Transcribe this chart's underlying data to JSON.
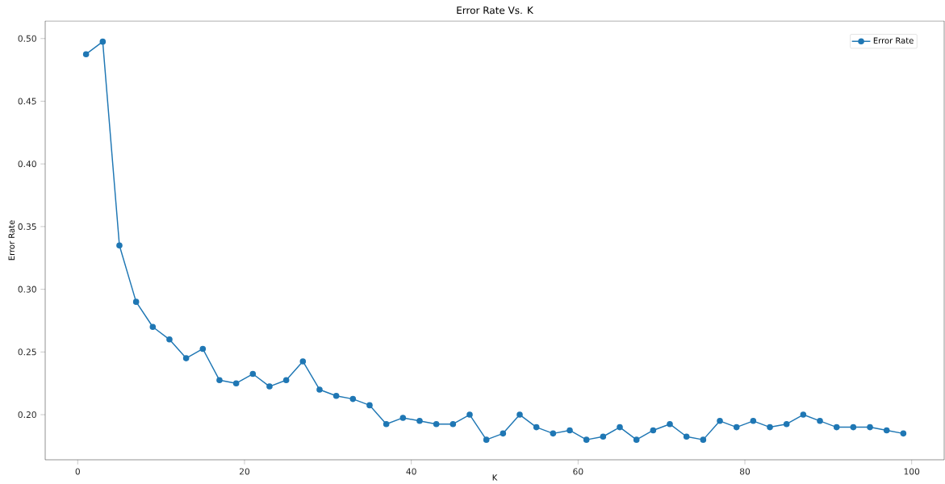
{
  "chart_data": {
    "type": "line",
    "title": "Error Rate Vs. K",
    "xlabel": "K",
    "ylabel": "Error Rate",
    "x": [
      1,
      3,
      5,
      7,
      9,
      11,
      13,
      15,
      17,
      19,
      21,
      23,
      25,
      27,
      29,
      31,
      33,
      35,
      37,
      39,
      41,
      43,
      45,
      47,
      49,
      51,
      53,
      55,
      57,
      59,
      61,
      63,
      65,
      67,
      69,
      71,
      73,
      75,
      77,
      79,
      81,
      83,
      85,
      87,
      89,
      91,
      93,
      95,
      97,
      99
    ],
    "series": [
      {
        "name": "Error Rate",
        "color": "#1f77b4",
        "values": [
          0.4875,
          0.4975,
          0.335,
          0.29,
          0.27,
          0.26,
          0.245,
          0.2525,
          0.2275,
          0.225,
          0.2325,
          0.2225,
          0.2275,
          0.2425,
          0.22,
          0.215,
          0.2125,
          0.2075,
          0.1925,
          0.1975,
          0.195,
          0.1925,
          0.1925,
          0.2,
          0.18,
          0.185,
          0.2,
          0.19,
          0.185,
          0.1875,
          0.18,
          0.1825,
          0.19,
          0.18,
          0.1875,
          0.1925,
          0.1825,
          0.18,
          0.195,
          0.19,
          0.195,
          0.19,
          0.1925,
          0.2,
          0.195,
          0.19,
          0.19,
          0.19,
          0.1875,
          0.185
        ]
      }
    ],
    "xlim": [
      -3.9,
      103.9
    ],
    "ylim": [
      0.164,
      0.514
    ],
    "xticks": [
      0,
      20,
      40,
      60,
      80,
      100
    ],
    "yticks": [
      {
        "value": 0.2,
        "label": "0.20"
      },
      {
        "value": 0.25,
        "label": "0.25"
      },
      {
        "value": 0.3,
        "label": "0.30"
      },
      {
        "value": 0.35,
        "label": "0.35"
      },
      {
        "value": 0.4,
        "label": "0.40"
      },
      {
        "value": 0.45,
        "label": "0.45"
      },
      {
        "value": 0.5,
        "label": "0.50"
      }
    ],
    "legend": "top right",
    "marker": "circle",
    "line_style": "solid",
    "grid": false
  }
}
